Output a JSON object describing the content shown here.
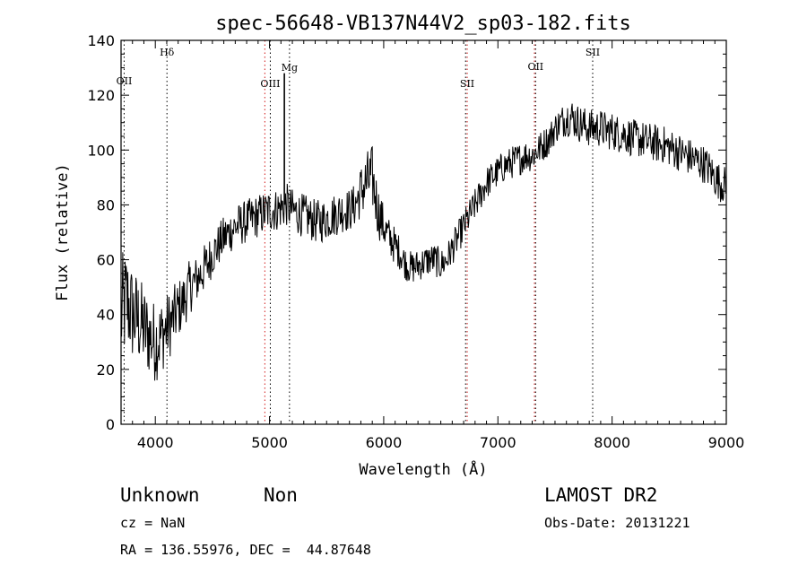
{
  "chart_data": {
    "type": "line",
    "title": "spec-56648-VB137N44V2_sp03-182.fits",
    "xlabel": "Wavelength (Å)",
    "ylabel": "Flux (relative)",
    "xlim": [
      3700,
      9000
    ],
    "ylim": [
      0,
      140
    ],
    "xticks": [
      4000,
      5000,
      6000,
      7000,
      8000,
      9000
    ],
    "yticks": [
      0,
      20,
      40,
      60,
      80,
      100,
      120,
      140
    ],
    "grid": false,
    "series": [
      {
        "x": [
          3700,
          3750,
          3800,
          3850,
          3900,
          3950,
          4000,
          4050,
          4100,
          4150,
          4200,
          4250,
          4300,
          4350,
          4400,
          4450,
          4500,
          4550,
          4600,
          4650,
          4700,
          4750,
          4800,
          4850,
          4900,
          4950,
          5000,
          5050,
          5100,
          5150,
          5200,
          5250,
          5300,
          5350,
          5400,
          5450,
          5500,
          5550,
          5600,
          5650,
          5700,
          5750,
          5800,
          5850,
          5900,
          5950,
          6000,
          6050,
          6100,
          6150,
          6200,
          6250,
          6300,
          6350,
          6400,
          6450,
          6500,
          6550,
          6600,
          6650,
          6700,
          6750,
          6800,
          6850,
          6900,
          6950,
          7000,
          7050,
          7100,
          7150,
          7200,
          7250,
          7300,
          7350,
          7400,
          7450,
          7500,
          7550,
          7600,
          7650,
          7700,
          7750,
          7800,
          7850,
          7900,
          7950,
          8000,
          8050,
          8100,
          8150,
          8200,
          8250,
          8300,
          8350,
          8400,
          8450,
          8500,
          8550,
          8600,
          8650,
          8700,
          8750,
          8800,
          8850,
          8900,
          8950,
          9000
        ],
        "y": [
          40,
          45,
          40,
          38,
          35,
          32,
          30,
          32,
          35,
          38,
          42,
          45,
          50,
          52,
          55,
          58,
          62,
          65,
          68,
          70,
          72,
          73,
          74,
          75,
          76,
          77,
          78,
          78,
          79,
          80,
          78,
          77,
          76,
          75,
          74,
          74,
          75,
          76,
          77,
          78,
          78,
          80,
          85,
          88,
          90,
          78,
          72,
          68,
          65,
          62,
          58,
          57,
          58,
          59,
          60,
          60,
          58,
          60,
          64,
          68,
          72,
          76,
          80,
          84,
          88,
          90,
          92,
          94,
          95,
          96,
          97,
          98,
          98,
          100,
          102,
          104,
          108,
          110,
          112,
          112,
          110,
          109,
          108,
          108,
          108,
          107,
          107,
          106,
          106,
          105,
          104,
          104,
          103,
          103,
          102,
          102,
          101,
          100,
          99,
          98,
          97,
          96,
          95,
          93,
          90,
          88,
          87
        ],
        "noise": [
          22,
          20,
          18,
          17,
          16,
          15,
          15,
          14,
          13,
          12,
          11,
          10,
          10,
          9,
          9,
          9,
          8,
          8,
          8,
          8,
          8,
          8,
          8,
          8,
          8,
          8,
          8,
          8,
          8,
          8,
          8,
          8,
          8,
          8,
          8,
          8,
          8,
          8,
          8,
          8,
          8,
          8,
          10,
          12,
          12,
          10,
          8,
          7,
          7,
          6,
          6,
          6,
          6,
          6,
          6,
          6,
          6,
          6,
          6,
          6,
          6,
          6,
          6,
          6,
          6,
          6,
          6,
          6,
          6,
          6,
          6,
          6,
          6,
          6,
          6,
          6,
          6,
          6,
          7,
          7,
          7,
          7,
          7,
          7,
          7,
          7,
          7,
          7,
          7,
          7,
          7,
          7,
          7,
          7,
          7,
          7,
          7,
          7,
          7,
          7,
          7,
          7,
          7,
          7,
          7,
          7,
          7
        ]
      }
    ],
    "spikes": [
      {
        "x": 5130,
        "y": 128
      }
    ],
    "lines": [
      {
        "label": "OII",
        "x": 3727,
        "color": "#000000"
      },
      {
        "label": "Hδ",
        "x": 4102,
        "color": "#000000"
      },
      {
        "label": "OIII",
        "x": 4959,
        "color": "#d11a1a"
      },
      {
        "label": "OIII",
        "x": 5007,
        "color": "#000000"
      },
      {
        "label": "Mg",
        "x": 5175,
        "color": "#000000"
      },
      {
        "label": "SII",
        "x": 6717,
        "color": "#000000"
      },
      {
        "label": "SII",
        "x": 6731,
        "color": "#d11a1a"
      },
      {
        "label": "OII",
        "x": 7320,
        "color": "#d11a1a"
      },
      {
        "label": "OII",
        "x": 7330,
        "color": "#000000"
      },
      {
        "label": "SII",
        "x": 7830,
        "color": "#000000"
      }
    ]
  },
  "info": {
    "classification": "Unknown",
    "subclass": "Non",
    "survey": "LAMOST DR2",
    "cz": "cz = NaN",
    "obs_date": "Obs-Date: 20131221",
    "coords": "RA = 136.55976, DEC =  44.87648"
  }
}
